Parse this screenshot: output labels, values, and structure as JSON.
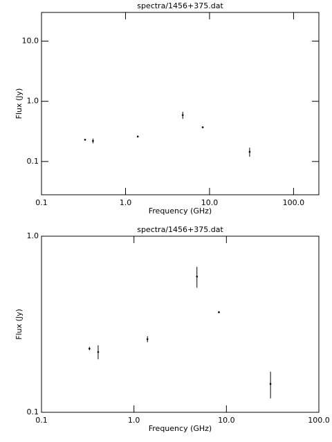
{
  "chart_data": [
    {
      "type": "scatter",
      "title": "spectra/1456+375.dat",
      "x_label": "Frequency (GHz)",
      "y_label": "Flux (Jy)",
      "log_x": true,
      "log_y": true,
      "color": "#000000",
      "xlim": [
        0.1,
        200
      ],
      "ylim": [
        0.028,
        30
      ],
      "xticks": [
        0.1,
        {
          "value": 1,
          "label": "1.0"
        },
        {
          "value": 10,
          "label": "10.0"
        },
        {
          "value": 100,
          "label": "100.0"
        }
      ],
      "yticks": [
        0.1,
        {
          "value": 1,
          "label": "1.0"
        },
        {
          "value": 10,
          "label": "10.0"
        }
      ],
      "x": [
        0.33,
        0.41,
        1.4,
        4.8,
        8.3,
        30
      ],
      "values": [
        0.23,
        0.22,
        0.26,
        0.59,
        0.37,
        0.145
      ],
      "errors": [
        0.005,
        0.02,
        0.01,
        0.08,
        0.005,
        0.025
      ]
    },
    {
      "type": "scatter",
      "title": "spectra/1456+375.dat",
      "x_label": "Frequency (GHz)",
      "y_label": "Flux (Jy)",
      "log_x": true,
      "log_y": true,
      "color": "#000000",
      "xlim": [
        0.1,
        100
      ],
      "ylim": [
        0.1,
        1
      ],
      "xticks": [
        0.1,
        {
          "value": 1,
          "label": "1.0"
        },
        {
          "value": 10,
          "label": "10.0"
        },
        {
          "value": 100,
          "label": "100.0"
        }
      ],
      "yticks": [
        0.1,
        {
          "value": 1,
          "label": "1.0"
        }
      ],
      "x": [
        0.33,
        0.41,
        1.4,
        4.8,
        8.3,
        30
      ],
      "values": [
        0.23,
        0.22,
        0.26,
        0.59,
        0.37,
        0.145
      ],
      "errors": [
        0.005,
        0.02,
        0.01,
        0.08,
        0.005,
        0.025
      ]
    }
  ]
}
